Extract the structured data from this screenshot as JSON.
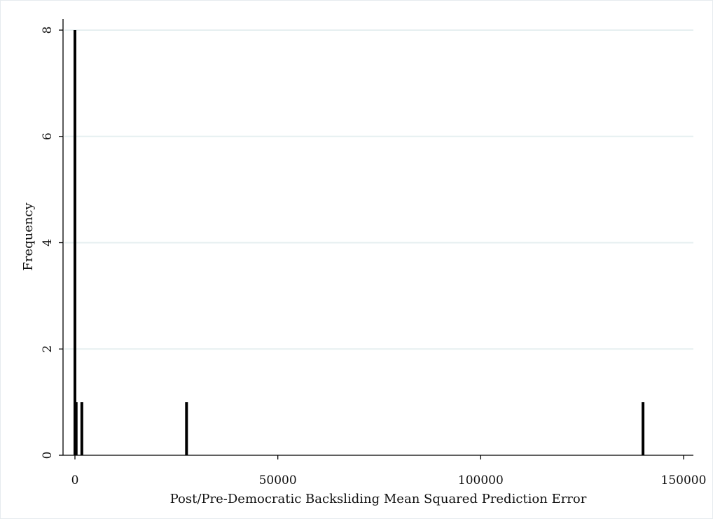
{
  "chart_data": {
    "type": "bar",
    "title": "",
    "xlabel": "Post/Pre-Democratic Backsliding Mean Squared Prediction Error",
    "ylabel": "Frequency",
    "xlim": [
      0,
      150000
    ],
    "ylim": [
      0,
      8
    ],
    "x_ticks": [
      {
        "value": 0,
        "label": "0"
      },
      {
        "value": 50000,
        "label": "50000"
      },
      {
        "value": 100000,
        "label": "100000"
      },
      {
        "value": 150000,
        "label": "150000"
      }
    ],
    "y_ticks": [
      {
        "value": 0,
        "label": "0"
      },
      {
        "value": 2,
        "label": "2"
      },
      {
        "value": 4,
        "label": "4"
      },
      {
        "value": 6,
        "label": "6"
      },
      {
        "value": 8,
        "label": "8"
      }
    ],
    "grid": "horizontal",
    "bars": [
      {
        "x": 0,
        "frequency": 8
      },
      {
        "x": 300,
        "frequency": 1
      },
      {
        "x": 1700,
        "frequency": 1
      },
      {
        "x": 27500,
        "frequency": 1
      },
      {
        "x": 140000,
        "frequency": 1
      }
    ],
    "colors": {
      "bar": "#000000",
      "grid": "#e6eff0",
      "axis": "#000000"
    }
  }
}
